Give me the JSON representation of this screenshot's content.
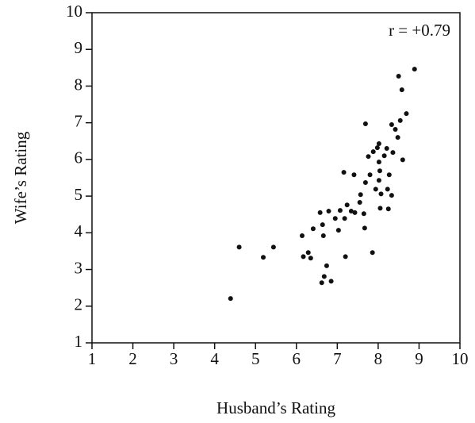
{
  "chart_data": {
    "type": "scatter",
    "x_label": "Husband’s Rating",
    "y_label": "Wife’s Rating",
    "annotation": "r = +0.79",
    "xlim": [
      1,
      10
    ],
    "ylim": [
      1,
      10
    ],
    "xticks": [
      1,
      2,
      3,
      4,
      5,
      6,
      7,
      8,
      9,
      10
    ],
    "yticks": [
      1,
      2,
      3,
      4,
      5,
      6,
      7,
      8,
      9,
      10
    ],
    "color": "#111111",
    "x": [
      4.39,
      4.6,
      5.19,
      5.44,
      6.14,
      6.17,
      6.29,
      6.35,
      6.41,
      6.58,
      6.64,
      6.66,
      6.62,
      6.68,
      6.74,
      6.85,
      6.79,
      6.95,
      7.03,
      7.07,
      7.18,
      7.2,
      7.16,
      7.24,
      7.34,
      7.41,
      7.43,
      7.55,
      7.57,
      7.65,
      7.67,
      7.69,
      7.69,
      7.76,
      7.8,
      7.86,
      7.88,
      7.94,
      7.98,
      8.02,
      8.02,
      8.04,
      8.02,
      8.07,
      8.05,
      8.15,
      8.21,
      8.23,
      8.25,
      8.27,
      8.33,
      8.33,
      8.36,
      8.42,
      8.48,
      8.5,
      8.54,
      8.58,
      8.6,
      8.69,
      8.89
    ],
    "values": [
      2.21,
      3.61,
      3.33,
      3.61,
      3.92,
      3.35,
      3.46,
      3.31,
      4.11,
      4.55,
      4.22,
      3.92,
      2.64,
      2.81,
      3.1,
      2.68,
      4.59,
      4.39,
      4.07,
      4.61,
      4.39,
      3.35,
      5.65,
      4.76,
      4.59,
      5.58,
      4.55,
      4.83,
      5.04,
      4.52,
      4.13,
      5.37,
      6.97,
      6.08,
      5.58,
      3.46,
      6.21,
      5.19,
      6.32,
      6.43,
      5.93,
      5.69,
      5.43,
      5.06,
      4.67,
      6.1,
      6.3,
      5.19,
      4.65,
      5.58,
      5.02,
      6.95,
      6.19,
      6.82,
      6.6,
      8.27,
      7.06,
      7.9,
      5.99,
      7.25,
      8.46
    ]
  }
}
